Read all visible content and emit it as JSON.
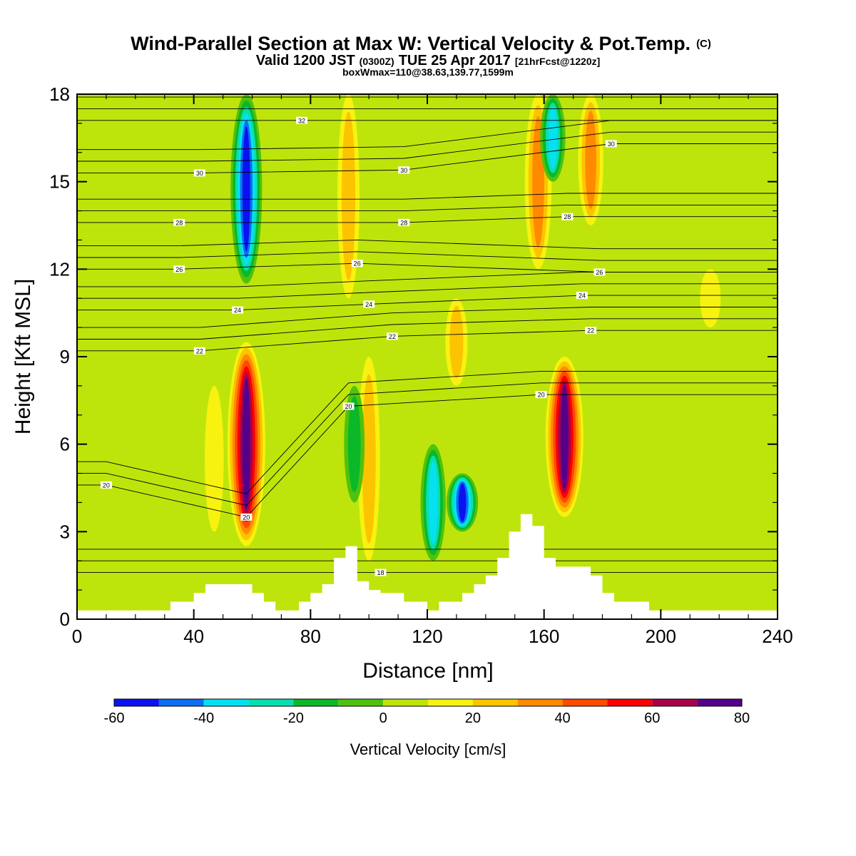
{
  "title": "Wind-Parallel Section at Max W: Vertical Velocity & Pot.Temp.",
  "title_mark": "(C)",
  "subtitle_parts": [
    "Valid 1200 JST",
    "(0300Z)",
    "TUE 25 Apr 2017",
    "[21hrFcst@1220z]"
  ],
  "subtitle2": "boxWmax=110@38.63,139.77,1599m",
  "chart_data": {
    "type": "heatmap",
    "xlabel": "Distance [nm]",
    "ylabel": "Height [Kft MSL]",
    "xlim": [
      0,
      240
    ],
    "ylim": [
      0,
      18
    ],
    "xticks": [
      "0",
      "40",
      "80",
      "120",
      "160",
      "200",
      "240"
    ],
    "yticks": [
      "0",
      "3",
      "6",
      "9",
      "12",
      "15",
      "18"
    ],
    "colorbar": {
      "label": "Vertical Velocity [cm/s]",
      "ticks": [
        "-60",
        "-40",
        "-20",
        "0",
        "20",
        "40",
        "60",
        "80"
      ],
      "bounds": [
        -60,
        -50,
        -40,
        -30,
        -20,
        -10,
        0,
        10,
        20,
        30,
        40,
        50,
        60,
        70,
        80
      ],
      "colors": [
        "#0b12f0",
        "#0d6ef2",
        "#06e1f2",
        "#09deb0",
        "#0ab828",
        "#50c20e",
        "#bde50c",
        "#f7f20f",
        "#fcc400",
        "#ff8a00",
        "#ff4b00",
        "#ff0000",
        "#a8004a",
        "#55008a"
      ]
    },
    "vertical_velocity_features": [
      {
        "x": 58,
        "top": 9.5,
        "bottom": 2.5,
        "peak": 75
      },
      {
        "x": 58,
        "top": 18,
        "bottom": 11.5,
        "peak": -55
      },
      {
        "x": 93,
        "top": 18,
        "bottom": 11,
        "peak": 25
      },
      {
        "x": 100,
        "top": 9,
        "bottom": 2,
        "peak": 25
      },
      {
        "x": 95,
        "top": 8,
        "bottom": 4,
        "peak": -20
      },
      {
        "x": 130,
        "top": 11,
        "bottom": 8,
        "peak": 25
      },
      {
        "x": 122,
        "top": 6,
        "bottom": 2,
        "peak": -35
      },
      {
        "x": 132,
        "top": 5,
        "bottom": 3,
        "peak": -55
      },
      {
        "x": 167,
        "top": 9,
        "bottom": 3.5,
        "peak": 75
      },
      {
        "x": 158,
        "top": 18,
        "bottom": 12,
        "peak": 40
      },
      {
        "x": 163,
        "top": 18,
        "bottom": 15,
        "peak": -35
      },
      {
        "x": 176,
        "top": 18,
        "bottom": 13.5,
        "peak": 35
      },
      {
        "x": 217,
        "top": 12,
        "bottom": 10,
        "peak": 20
      },
      {
        "x": 47,
        "top": 8,
        "bottom": 3,
        "peak": 15
      }
    ],
    "theta_contour_labels": [
      {
        "x": 10,
        "y": 4.6,
        "text": "20"
      },
      {
        "x": 58,
        "y": 3.5,
        "text": "20"
      },
      {
        "x": 93,
        "y": 7.3,
        "text": "20"
      },
      {
        "x": 159,
        "y": 7.7,
        "text": "20"
      },
      {
        "x": 104,
        "y": 1.6,
        "text": "18"
      },
      {
        "x": 42,
        "y": 9.2,
        "text": "22"
      },
      {
        "x": 108,
        "y": 9.7,
        "text": "22"
      },
      {
        "x": 176,
        "y": 9.9,
        "text": "22"
      },
      {
        "x": 55,
        "y": 10.6,
        "text": "24"
      },
      {
        "x": 100,
        "y": 10.8,
        "text": "24"
      },
      {
        "x": 173,
        "y": 11.1,
        "text": "24"
      },
      {
        "x": 35,
        "y": 12,
        "text": "26"
      },
      {
        "x": 96,
        "y": 12.2,
        "text": "26"
      },
      {
        "x": 179,
        "y": 11.9,
        "text": "26"
      },
      {
        "x": 35,
        "y": 13.6,
        "text": "28"
      },
      {
        "x": 112,
        "y": 13.6,
        "text": "28"
      },
      {
        "x": 168,
        "y": 13.8,
        "text": "28"
      },
      {
        "x": 42,
        "y": 15.3,
        "text": "30"
      },
      {
        "x": 112,
        "y": 15.4,
        "text": "30"
      },
      {
        "x": 183,
        "y": 16.3,
        "text": "30"
      },
      {
        "x": 77,
        "y": 17.1,
        "text": "32"
      }
    ],
    "terrain_profile": [
      [
        0,
        0.3
      ],
      [
        4,
        0.3
      ],
      [
        8,
        0.3
      ],
      [
        12,
        0.3
      ],
      [
        16,
        0.3
      ],
      [
        20,
        0.3
      ],
      [
        24,
        0.3
      ],
      [
        28,
        0.3
      ],
      [
        32,
        0.6
      ],
      [
        36,
        0.6
      ],
      [
        40,
        0.9
      ],
      [
        44,
        1.2
      ],
      [
        48,
        1.2
      ],
      [
        52,
        1.2
      ],
      [
        56,
        1.2
      ],
      [
        60,
        0.9
      ],
      [
        64,
        0.6
      ],
      [
        68,
        0.3
      ],
      [
        72,
        0.3
      ],
      [
        76,
        0.6
      ],
      [
        80,
        0.9
      ],
      [
        84,
        1.2
      ],
      [
        88,
        2.1
      ],
      [
        92,
        2.5
      ],
      [
        96,
        1.3
      ],
      [
        100,
        1.0
      ],
      [
        104,
        0.9
      ],
      [
        108,
        0.9
      ],
      [
        112,
        0.6
      ],
      [
        116,
        0.6
      ],
      [
        120,
        0.3
      ],
      [
        124,
        0.6
      ],
      [
        128,
        0.6
      ],
      [
        132,
        0.9
      ],
      [
        136,
        1.2
      ],
      [
        140,
        1.5
      ],
      [
        144,
        2.1
      ],
      [
        148,
        3.0
      ],
      [
        152,
        3.6
      ],
      [
        156,
        3.2
      ],
      [
        160,
        2.1
      ],
      [
        164,
        1.8
      ],
      [
        168,
        1.8
      ],
      [
        172,
        1.8
      ],
      [
        176,
        1.5
      ],
      [
        180,
        0.9
      ],
      [
        184,
        0.6
      ],
      [
        188,
        0.6
      ],
      [
        192,
        0.6
      ],
      [
        196,
        0.3
      ],
      [
        200,
        0.3
      ],
      [
        204,
        0.3
      ],
      [
        208,
        0.3
      ],
      [
        212,
        0.3
      ],
      [
        216,
        0.3
      ],
      [
        220,
        0.3
      ],
      [
        224,
        0.3
      ],
      [
        228,
        0.3
      ],
      [
        232,
        0.3
      ],
      [
        236,
        0.3
      ],
      [
        240,
        0.3
      ]
    ]
  }
}
